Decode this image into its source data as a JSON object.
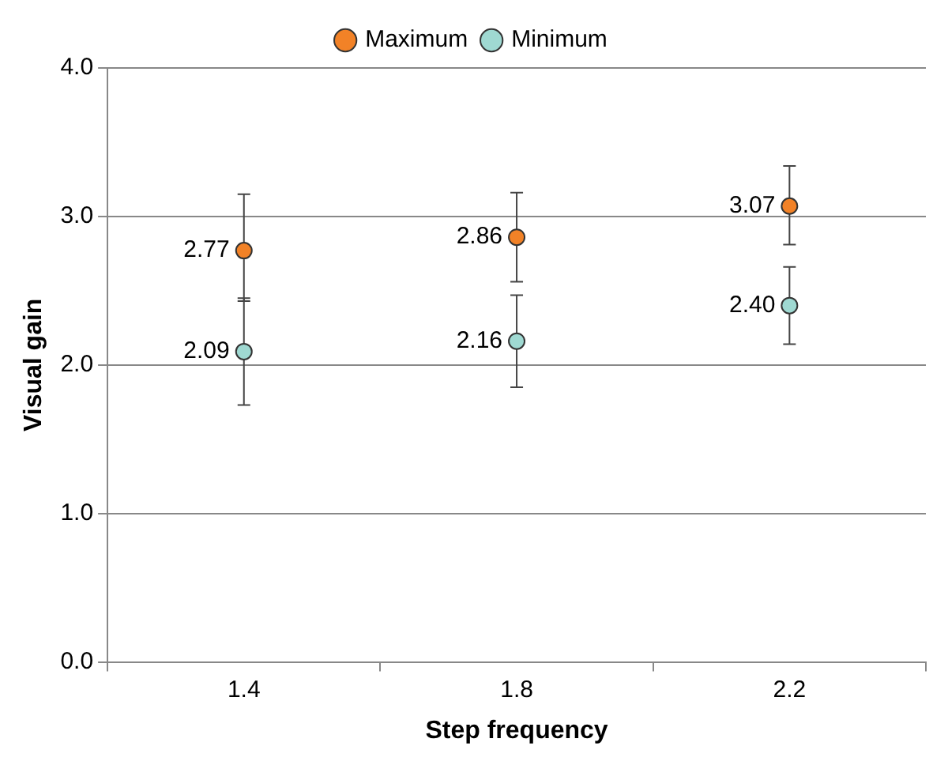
{
  "chart_data": {
    "type": "scatter",
    "xlabel": "Step frequency",
    "ylabel": "Visual gain",
    "categories": [
      "1.4",
      "1.8",
      "2.2"
    ],
    "series": [
      {
        "name": "Maximum",
        "color": "#f28227",
        "values": [
          2.77,
          2.86,
          3.07
        ],
        "value_labels": [
          "2.77",
          "2.86",
          "3.07"
        ],
        "errors": [
          [
            2.43,
            3.15
          ],
          [
            2.56,
            3.16
          ],
          [
            2.81,
            3.34
          ]
        ]
      },
      {
        "name": "Minimum",
        "color": "#9fd9d2",
        "values": [
          2.09,
          2.16,
          2.4
        ],
        "value_labels": [
          "2.09",
          "2.16",
          "2.40"
        ],
        "errors": [
          [
            1.73,
            2.45
          ],
          [
            1.85,
            2.47
          ],
          [
            2.14,
            2.66
          ]
        ]
      }
    ],
    "ylim": [
      0,
      4
    ],
    "yticks": [
      {
        "value": 0,
        "label": "0.0"
      },
      {
        "value": 1,
        "label": "1.0"
      },
      {
        "value": 2,
        "label": "2.0"
      },
      {
        "value": 3,
        "label": "3.0"
      },
      {
        "value": 4,
        "label": "4.0"
      }
    ],
    "grid": "y",
    "legend": "top",
    "marker": "circle"
  }
}
